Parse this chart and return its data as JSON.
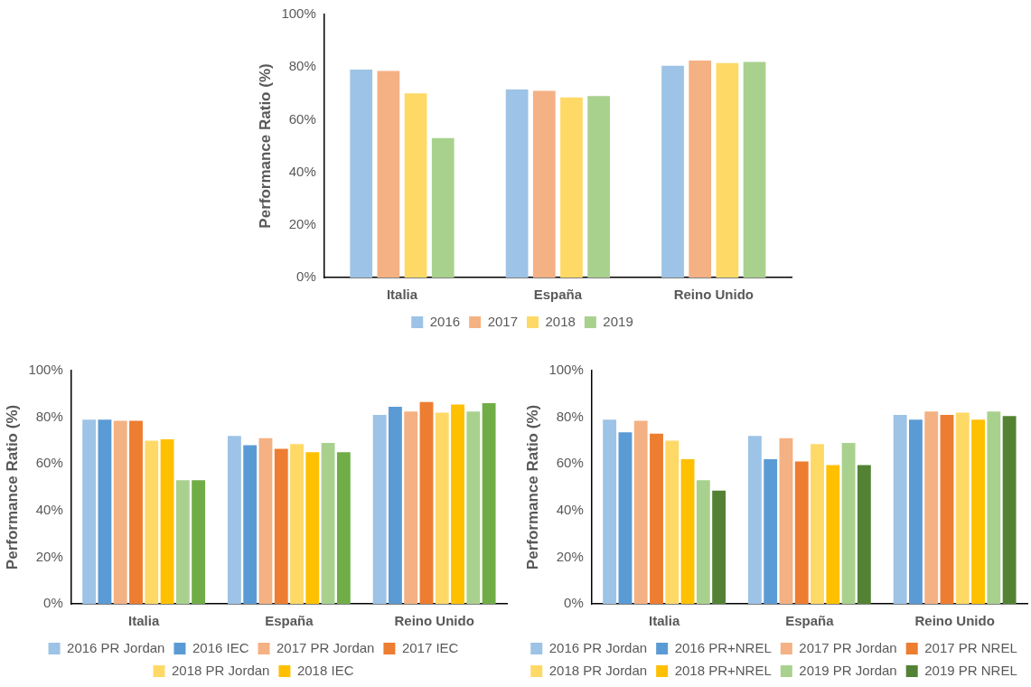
{
  "chart_data": [
    {
      "type": "bar",
      "ylabel": "Performance Ratio (%)",
      "categories": [
        "Italia",
        "España",
        "Reino Unido"
      ],
      "series": [
        {
          "name": "2016",
          "color": "#9dc3e6",
          "values": [
            79,
            71.5,
            80.5
          ]
        },
        {
          "name": "2017",
          "color": "#f4b183",
          "values": [
            78.5,
            71,
            82.5
          ]
        },
        {
          "name": "2018",
          "color": "#ffd966",
          "values": [
            70,
            68.5,
            81.5
          ]
        },
        {
          "name": "2019",
          "color": "#a9d18e",
          "values": [
            53,
            69,
            82
          ]
        }
      ],
      "ylim": [
        0,
        100
      ],
      "yticks": [
        {
          "value": 0,
          "label": "0%"
        },
        {
          "value": 20,
          "label": "20%"
        },
        {
          "value": 40,
          "label": "40%"
        },
        {
          "value": 60,
          "label": "60%"
        },
        {
          "value": 80,
          "label": "80%"
        },
        {
          "value": 100,
          "label": "100%"
        }
      ],
      "grid": false,
      "legend": "bottom"
    },
    {
      "type": "bar",
      "ylabel": "Performance Ratio (%)",
      "categories": [
        "Italia",
        "España",
        "Reino Unido"
      ],
      "series": [
        {
          "name": "2016 PR Jordan",
          "color": "#9dc3e6",
          "values": [
            79,
            72,
            81
          ]
        },
        {
          "name": "2016 IEC",
          "color": "#5b9bd5",
          "values": [
            79,
            68,
            84.5
          ]
        },
        {
          "name": "2017 PR Jordan",
          "color": "#f4b183",
          "values": [
            78.5,
            71,
            82.5
          ]
        },
        {
          "name": "2017 IEC",
          "color": "#ed7d31",
          "values": [
            78.5,
            66.5,
            86.5
          ]
        },
        {
          "name": "2018 PR Jordan",
          "color": "#ffd966",
          "values": [
            70,
            68.5,
            82
          ]
        },
        {
          "name": "2018 IEC",
          "color": "#ffc000",
          "values": [
            70.5,
            65,
            85.5
          ]
        },
        {
          "color": "#a9d18e",
          "values": [
            53,
            69,
            82.5
          ]
        },
        {
          "color": "#70ad47",
          "values": [
            53,
            65,
            86
          ]
        }
      ],
      "ylim": [
        0,
        100
      ],
      "yticks": [
        {
          "value": 0,
          "label": "0%"
        },
        {
          "value": 20,
          "label": "20%"
        },
        {
          "value": 40,
          "label": "40%"
        },
        {
          "value": 60,
          "label": "60%"
        },
        {
          "value": 80,
          "label": "80%"
        },
        {
          "value": 100,
          "label": "100%"
        }
      ],
      "grid": false,
      "legend": "bottom"
    },
    {
      "type": "bar",
      "ylabel": "Performance Ratio (%)",
      "categories": [
        "Italia",
        "España",
        "Reino Unido"
      ],
      "series": [
        {
          "name": "2016 PR Jordan",
          "color": "#9dc3e6",
          "values": [
            79,
            72,
            81
          ]
        },
        {
          "name": "2016 PR+NREL",
          "color": "#5b9bd5",
          "values": [
            73.5,
            62,
            79
          ]
        },
        {
          "name": "2017 PR Jordan",
          "color": "#f4b183",
          "values": [
            78.5,
            71,
            82.5
          ]
        },
        {
          "name": "2017 PR NREL",
          "color": "#ed7d31",
          "values": [
            73,
            61,
            81
          ]
        },
        {
          "name": "2018 PR Jordan",
          "color": "#ffd966",
          "values": [
            70,
            68.5,
            82
          ]
        },
        {
          "name": "2018 PR+NREL",
          "color": "#ffc000",
          "values": [
            62,
            59.5,
            79
          ]
        },
        {
          "name": "2019 PR Jordan",
          "color": "#a9d18e",
          "values": [
            53,
            69,
            82.5
          ]
        },
        {
          "name": "2019 PR NREL",
          "color": "#548235",
          "values": [
            48.5,
            59.5,
            80.5
          ]
        }
      ],
      "ylim": [
        0,
        100
      ],
      "yticks": [
        {
          "value": 0,
          "label": "0%"
        },
        {
          "value": 20,
          "label": "20%"
        },
        {
          "value": 40,
          "label": "40%"
        },
        {
          "value": 60,
          "label": "60%"
        },
        {
          "value": 80,
          "label": "80%"
        },
        {
          "value": 100,
          "label": "100%"
        }
      ],
      "grid": false,
      "legend": "bottom"
    }
  ]
}
